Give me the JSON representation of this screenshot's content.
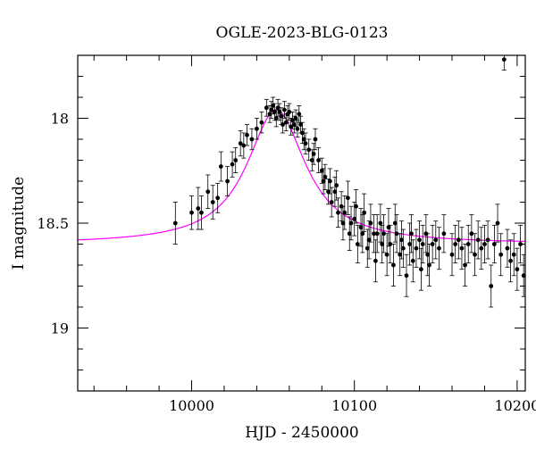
{
  "chart_data": {
    "type": "scatter",
    "title": "OGLE-2023-BLG-0123",
    "xlabel": "HJD - 2450000",
    "ylabel": "I magnitude",
    "xlim": [
      9930,
      10205
    ],
    "ylim": [
      19.3,
      17.7
    ],
    "y_inverted": true,
    "grid": false,
    "x_ticks": [
      {
        "value": 10000,
        "label": "10000"
      },
      {
        "value": 10100,
        "label": "10100"
      },
      {
        "value": 10200,
        "label": "10200"
      }
    ],
    "y_ticks": [
      {
        "value": 18,
        "label": "18"
      },
      {
        "value": 18.5,
        "label": "18.5"
      },
      {
        "value": 19,
        "label": "19"
      }
    ],
    "colors": {
      "points": "#000000",
      "model": "#ff00ff"
    },
    "series": [
      {
        "kind": "points_with_errorbars",
        "x": [
          9990,
          10000,
          10004,
          10006,
          10010,
          10013,
          10016,
          10018,
          10022,
          10025,
          10027,
          10030,
          10032,
          10034,
          10037,
          10040,
          10043,
          10046,
          10048,
          10049,
          10050,
          10051,
          10052,
          10053,
          10054,
          10055,
          10056,
          10057,
          10058,
          10059,
          10060,
          10061,
          10062,
          10063,
          10064,
          10065,
          10066,
          10067,
          10068,
          10069,
          10070,
          10072,
          10074,
          10075,
          10076,
          10078,
          10080,
          10081,
          10082,
          10084,
          10085,
          10086,
          10088,
          10089,
          10090,
          10092,
          10093,
          10094,
          10096,
          10097,
          10098,
          10100,
          10101,
          10102,
          10104,
          10105,
          10106,
          10108,
          10109,
          10110,
          10112,
          10113,
          10114,
          10116,
          10117,
          10118,
          10120,
          10121,
          10122,
          10124,
          10125,
          10126,
          10128,
          10129,
          10130,
          10132,
          10134,
          10135,
          10136,
          10138,
          10140,
          10141,
          10142,
          10144,
          10145,
          10146,
          10148,
          10150,
          10152,
          10155,
          10160,
          10162,
          10164,
          10166,
          10168,
          10170,
          10172,
          10174,
          10176,
          10178,
          10180,
          10182,
          10184,
          10186,
          10188,
          10190,
          10192,
          10194,
          10196,
          10198,
          10200,
          10202,
          10204
        ],
        "y": [
          18.5,
          18.45,
          18.43,
          18.45,
          18.35,
          18.4,
          18.38,
          18.23,
          18.3,
          18.22,
          18.2,
          18.12,
          18.13,
          18.08,
          18.1,
          18.05,
          18.02,
          17.95,
          17.98,
          17.96,
          17.94,
          17.97,
          18.0,
          17.95,
          17.97,
          17.99,
          18.03,
          17.96,
          18.02,
          17.98,
          17.97,
          18.04,
          18.01,
          18.03,
          18.0,
          18.05,
          17.98,
          18.03,
          18.07,
          18.1,
          18.12,
          18.15,
          18.2,
          18.17,
          18.1,
          18.2,
          18.25,
          18.3,
          18.28,
          18.35,
          18.3,
          18.4,
          18.35,
          18.32,
          18.45,
          18.42,
          18.5,
          18.45,
          18.38,
          18.55,
          18.5,
          18.48,
          18.42,
          18.6,
          18.52,
          18.55,
          18.45,
          18.62,
          18.58,
          18.5,
          18.55,
          18.68,
          18.55,
          18.5,
          18.6,
          18.55,
          18.65,
          18.52,
          18.6,
          18.7,
          18.5,
          18.55,
          18.65,
          18.58,
          18.62,
          18.75,
          18.6,
          18.55,
          18.68,
          18.62,
          18.58,
          18.72,
          18.6,
          18.55,
          18.65,
          18.7,
          18.6,
          18.58,
          18.62,
          18.55,
          18.65,
          18.6,
          18.58,
          18.62,
          18.7,
          18.6,
          18.55,
          18.65,
          18.58,
          18.62,
          18.6,
          18.58,
          18.8,
          18.6,
          18.5,
          18.65,
          17.72,
          18.62,
          18.68,
          18.65,
          18.72,
          18.6,
          18.75
        ],
        "err": [
          0.1,
          0.08,
          0.1,
          0.08,
          0.08,
          0.08,
          0.07,
          0.07,
          0.07,
          0.06,
          0.06,
          0.06,
          0.06,
          0.05,
          0.05,
          0.05,
          0.05,
          0.04,
          0.04,
          0.04,
          0.04,
          0.04,
          0.04,
          0.04,
          0.04,
          0.04,
          0.04,
          0.04,
          0.04,
          0.04,
          0.04,
          0.04,
          0.04,
          0.04,
          0.04,
          0.04,
          0.04,
          0.04,
          0.05,
          0.05,
          0.05,
          0.05,
          0.05,
          0.05,
          0.05,
          0.06,
          0.06,
          0.06,
          0.06,
          0.06,
          0.06,
          0.07,
          0.07,
          0.07,
          0.07,
          0.07,
          0.08,
          0.08,
          0.08,
          0.08,
          0.08,
          0.08,
          0.08,
          0.09,
          0.09,
          0.09,
          0.09,
          0.09,
          0.09,
          0.09,
          0.09,
          0.1,
          0.09,
          0.09,
          0.09,
          0.09,
          0.1,
          0.09,
          0.09,
          0.1,
          0.09,
          0.09,
          0.1,
          0.09,
          0.09,
          0.1,
          0.1,
          0.09,
          0.1,
          0.09,
          0.09,
          0.1,
          0.09,
          0.09,
          0.1,
          0.1,
          0.09,
          0.09,
          0.1,
          0.09,
          0.1,
          0.09,
          0.09,
          0.1,
          0.1,
          0.09,
          0.09,
          0.1,
          0.09,
          0.1,
          0.09,
          0.09,
          0.1,
          0.09,
          0.09,
          0.1,
          0.05,
          0.09,
          0.1,
          0.1,
          0.1,
          0.09,
          0.1
        ]
      },
      {
        "kind": "model_curve",
        "t0": 10052,
        "width_days": 22,
        "baseline_mag": 18.6,
        "peak_mag": 17.96
      }
    ]
  }
}
